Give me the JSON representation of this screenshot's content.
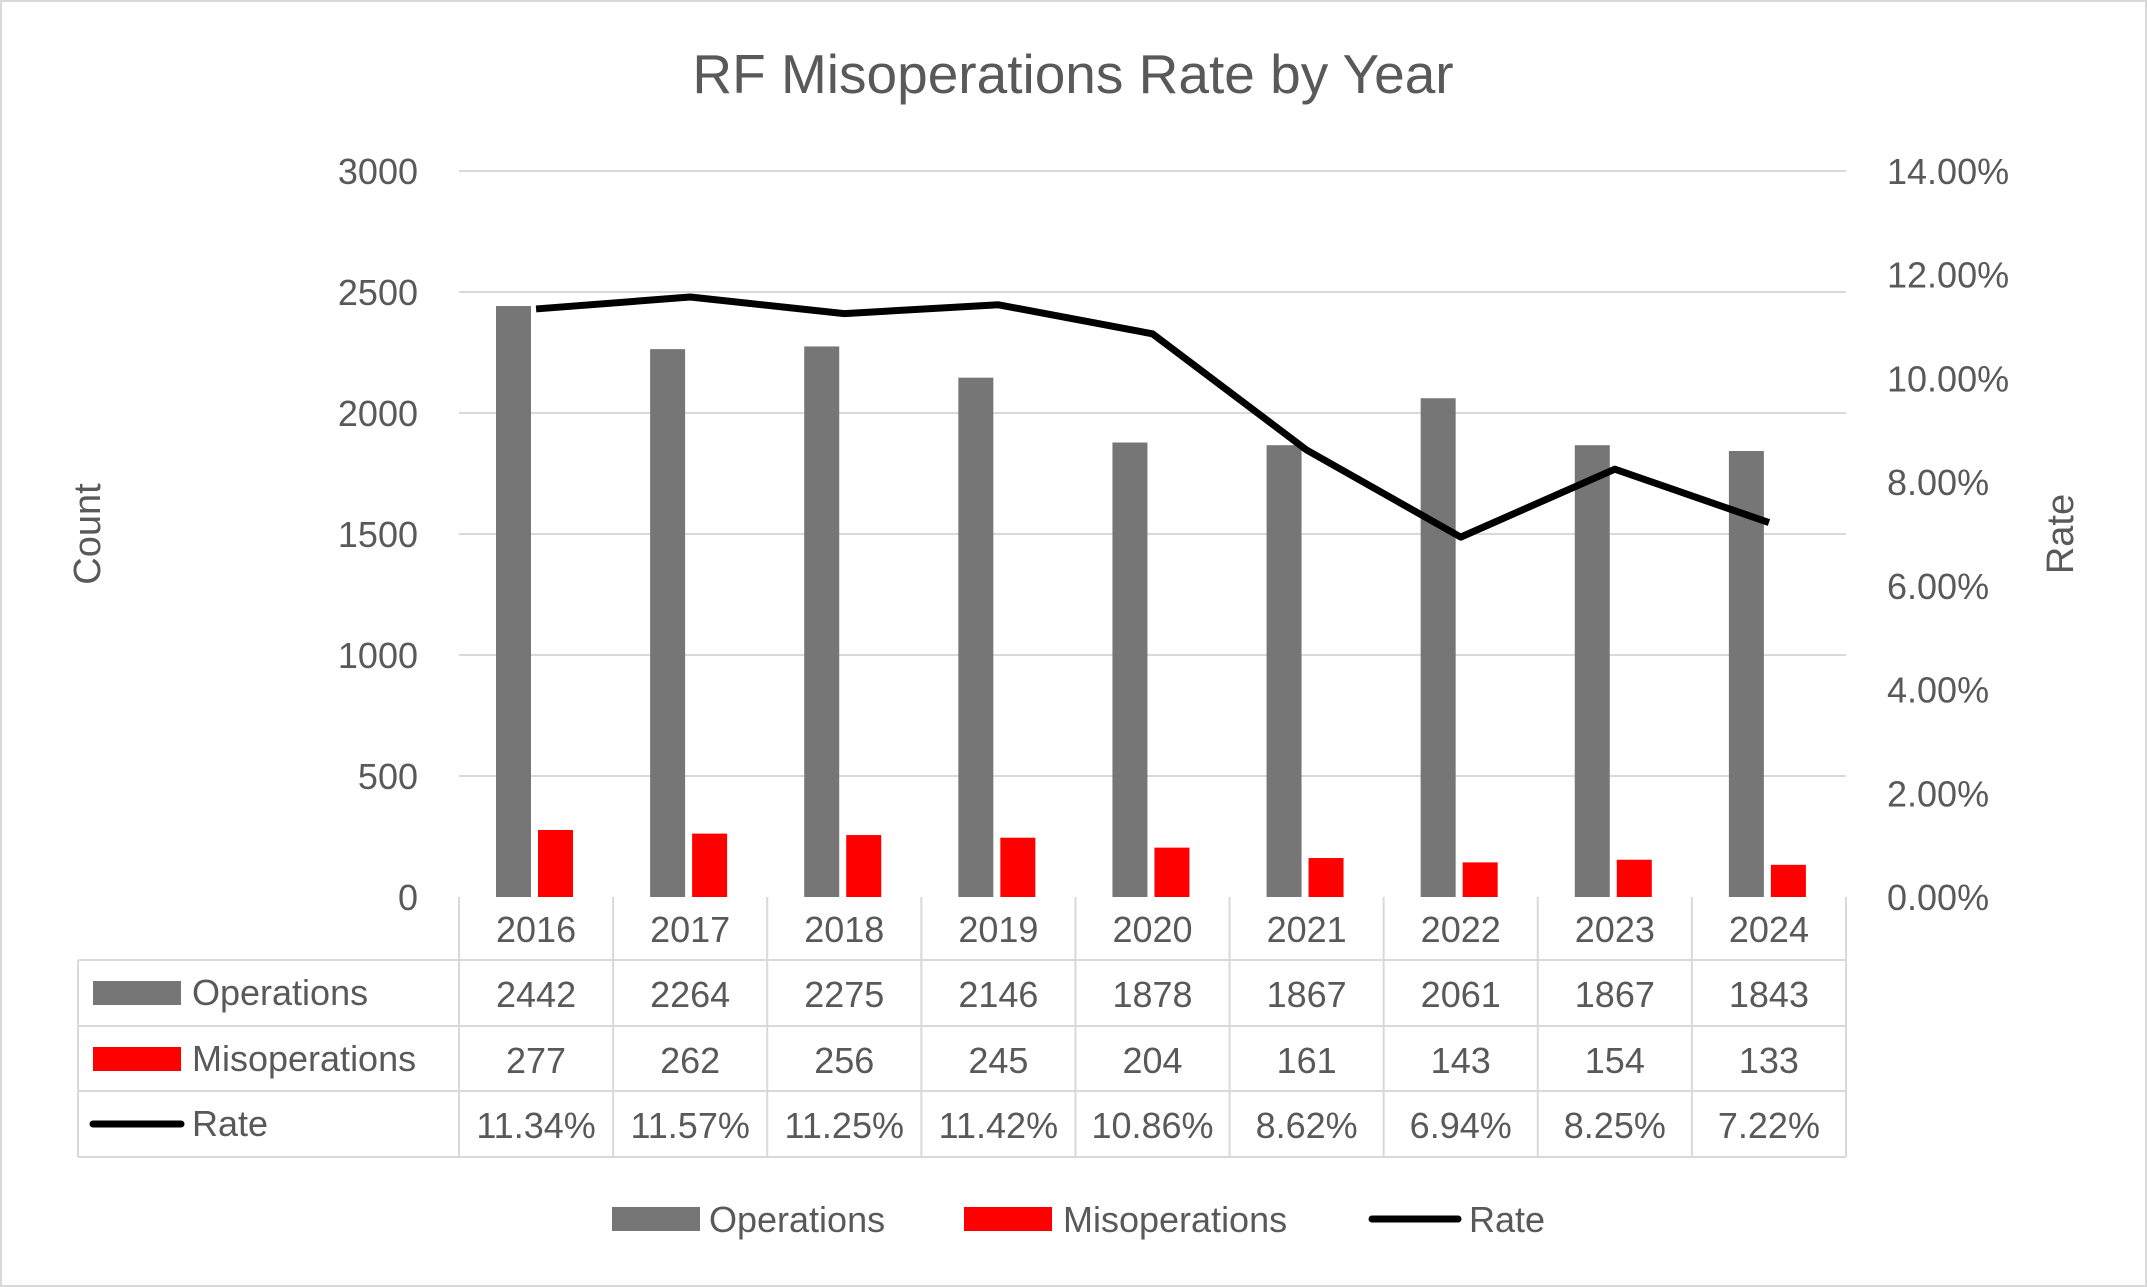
{
  "chart_data": {
    "type": "bar+line",
    "title": "RF Misoperations Rate by Year",
    "ylabel": "Count",
    "y2label": "Rate",
    "ylim": [
      0,
      3000
    ],
    "y2lim": [
      0,
      0.14
    ],
    "yticks": [
      "0",
      "500",
      "1000",
      "1500",
      "2000",
      "2500",
      "3000"
    ],
    "y2ticks": [
      "0.00%",
      "2.00%",
      "4.00%",
      "6.00%",
      "8.00%",
      "10.00%",
      "12.00%",
      "14.00%"
    ],
    "grid": true,
    "legend_position": "bottom",
    "categories": [
      "2016",
      "2017",
      "2018",
      "2019",
      "2020",
      "2021",
      "2022",
      "2023",
      "2024"
    ],
    "series": [
      {
        "name": "Operations",
        "type": "bar",
        "axis": "left",
        "color": "#767676",
        "values": [
          2442,
          2264,
          2275,
          2146,
          1878,
          1867,
          2061,
          1867,
          1843
        ]
      },
      {
        "name": "Misoperations",
        "type": "bar",
        "axis": "left",
        "color": "#FF0000",
        "values": [
          277,
          262,
          256,
          245,
          204,
          161,
          143,
          154,
          133
        ]
      },
      {
        "name": "Rate",
        "type": "line",
        "axis": "right",
        "color": "#000000",
        "values": [
          11.34,
          11.57,
          11.25,
          11.42,
          10.86,
          8.62,
          6.94,
          8.25,
          7.22
        ],
        "labels": [
          "11.34%",
          "11.57%",
          "11.25%",
          "11.42%",
          "10.86%",
          "8.62%",
          "6.94%",
          "8.25%",
          "7.22%"
        ]
      }
    ],
    "data_table": true
  }
}
